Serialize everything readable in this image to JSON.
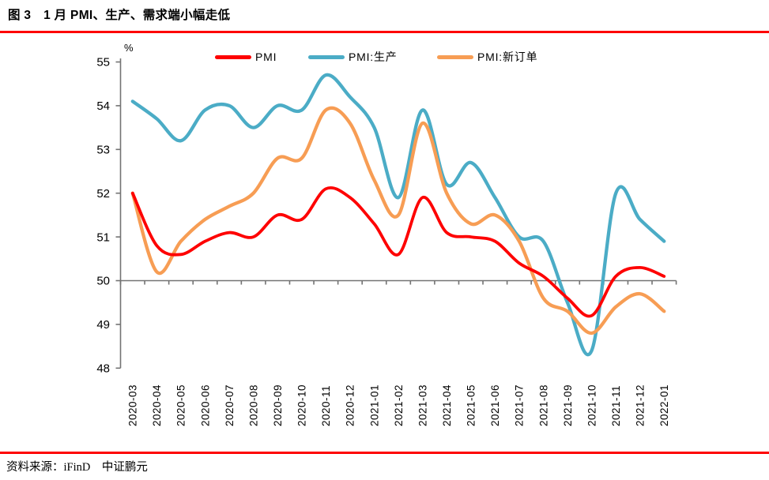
{
  "header": {
    "title": "图 3　1 月 PMI、生产、需求端小幅走低"
  },
  "footer": {
    "source": "资料来源：iFinD　中证鹏元"
  },
  "style": {
    "accent_rule_color": "#FE0000",
    "axis_color": "#737373",
    "text_color": "#000000",
    "background": "#FFFFFF"
  },
  "chart_data": {
    "type": "line",
    "smooth": true,
    "grid": false,
    "unit_label": "%",
    "legend_position": "top",
    "ylim": [
      48,
      55
    ],
    "ytick_step": 1,
    "x_axis_at": 50,
    "categories": [
      "2020-03",
      "2020-04",
      "2020-05",
      "2020-06",
      "2020-07",
      "2020-08",
      "2020-09",
      "2020-10",
      "2020-11",
      "2020-12",
      "2021-01",
      "2021-02",
      "2021-03",
      "2021-04",
      "2021-05",
      "2021-06",
      "2021-07",
      "2021-08",
      "2021-09",
      "2021-10",
      "2021-11",
      "2021-12",
      "2022-01"
    ],
    "series": [
      {
        "name": "PMI",
        "color": "#FE0000",
        "line_width": 3.8,
        "values": [
          52.0,
          50.8,
          50.6,
          50.9,
          51.1,
          51.0,
          51.5,
          51.4,
          52.1,
          51.9,
          51.3,
          50.6,
          51.9,
          51.1,
          51.0,
          50.9,
          50.4,
          50.1,
          49.6,
          49.2,
          50.1,
          50.3,
          50.1
        ]
      },
      {
        "name": "PMI:生产",
        "color": "#4BACC6",
        "line_width": 4.3,
        "values": [
          54.1,
          53.7,
          53.2,
          53.9,
          54.0,
          53.5,
          54.0,
          53.9,
          54.7,
          54.2,
          53.5,
          51.9,
          53.9,
          52.2,
          52.7,
          51.9,
          51.0,
          50.9,
          49.5,
          48.4,
          52.0,
          51.4,
          50.9
        ]
      },
      {
        "name": "PMI:新订单",
        "color": "#F79D54",
        "line_width": 4.3,
        "values": [
          52.0,
          50.2,
          50.9,
          51.4,
          51.7,
          52.0,
          52.8,
          52.8,
          53.9,
          53.6,
          52.3,
          51.5,
          53.6,
          52.0,
          51.3,
          51.5,
          50.9,
          49.6,
          49.3,
          48.8,
          49.4,
          49.7,
          49.3
        ]
      }
    ],
    "draw_order": [
      1,
      2,
      0
    ]
  }
}
